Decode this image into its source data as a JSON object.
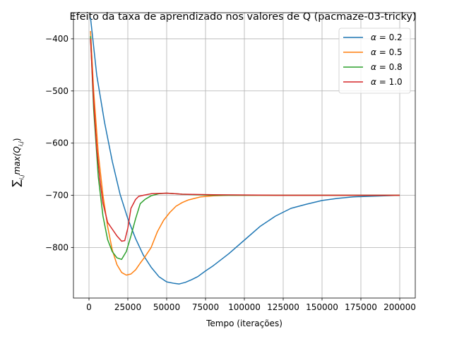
{
  "chart_data": {
    "type": "line",
    "title": "Efeito da taxa de aprendizado nos valores de Q (pacmaze-03-tricky)",
    "xlabel": "Tempo (iterações)",
    "ylabel_sum": "∑",
    "ylabel_sum_sub": "i,j",
    "ylabel_main": "max(Q",
    "ylabel_main_sub": "i,j",
    "ylabel_close": ")",
    "xlim": [
      -10000,
      210000
    ],
    "ylim": [
      -897,
      -350
    ],
    "grid": true,
    "legend_position": "top-right",
    "xticks": [
      0,
      25000,
      50000,
      75000,
      100000,
      125000,
      150000,
      175000,
      200000
    ],
    "yticks": [
      -800,
      -700,
      -600,
      -500,
      -400
    ],
    "series": [
      {
        "name": "α = 0.2",
        "legend_prefix": "α",
        "legend_value": " = 0.2",
        "color": "#1f77b4",
        "x": [
          1000,
          5000,
          10000,
          15000,
          20000,
          25000,
          30000,
          35000,
          40000,
          45000,
          50000,
          55000,
          58000,
          62000,
          66000,
          70000,
          75000,
          80000,
          90000,
          100000,
          110000,
          120000,
          130000,
          140000,
          150000,
          160000,
          170000,
          180000,
          190000,
          200000
        ],
        "y": [
          -360,
          -470,
          -560,
          -635,
          -698,
          -745,
          -783,
          -815,
          -838,
          -856,
          -866,
          -869,
          -870,
          -867,
          -862,
          -856,
          -845,
          -835,
          -812,
          -786,
          -760,
          -740,
          -725,
          -717,
          -710,
          -706,
          -703,
          -702,
          -701,
          -700
        ]
      },
      {
        "name": "α = 0.5",
        "legend_prefix": "α",
        "legend_value": " = 0.5",
        "color": "#ff7f0e",
        "x": [
          1000,
          3000,
          6000,
          9000,
          12000,
          15000,
          18000,
          21000,
          24000,
          27000,
          30000,
          33000,
          36000,
          40000,
          44000,
          48000,
          52000,
          56000,
          60000,
          64000,
          68000,
          72000,
          76000,
          80000,
          90000,
          100000,
          120000,
          150000,
          200000
        ],
        "y": [
          -385,
          -500,
          -620,
          -700,
          -760,
          -805,
          -833,
          -848,
          -853,
          -851,
          -843,
          -830,
          -818,
          -800,
          -770,
          -748,
          -733,
          -721,
          -714,
          -709,
          -706,
          -703,
          -702,
          -701,
          -700,
          -700,
          -700,
          -700,
          -700
        ]
      },
      {
        "name": "α = 0.8",
        "legend_prefix": "α",
        "legend_value": " = 0.8",
        "color": "#2ca02c",
        "x": [
          1000,
          3000,
          6000,
          9000,
          12000,
          15000,
          18000,
          21000,
          24000,
          27000,
          30000,
          33000,
          36000,
          40000,
          45000,
          50000,
          60000,
          80000,
          120000,
          200000
        ],
        "y": [
          -395,
          -535,
          -665,
          -740,
          -785,
          -808,
          -820,
          -823,
          -808,
          -778,
          -745,
          -716,
          -708,
          -701,
          -697,
          -696,
          -698,
          -700,
          -700,
          -700
        ]
      },
      {
        "name": "α = 1.0",
        "legend_prefix": "α",
        "legend_value": " = 1.0",
        "color": "#d62728",
        "x": [
          1000,
          3000,
          5000,
          7000,
          9000,
          12000,
          15000,
          18000,
          21000,
          23000,
          25000,
          27000,
          30000,
          32000,
          35000,
          40000,
          50000,
          60000,
          80000,
          120000,
          200000
        ],
        "y": [
          -400,
          -520,
          -610,
          -670,
          -715,
          -752,
          -765,
          -778,
          -788,
          -787,
          -763,
          -725,
          -708,
          -702,
          -700,
          -697,
          -696,
          -698,
          -699,
          -700,
          -700
        ]
      }
    ]
  }
}
